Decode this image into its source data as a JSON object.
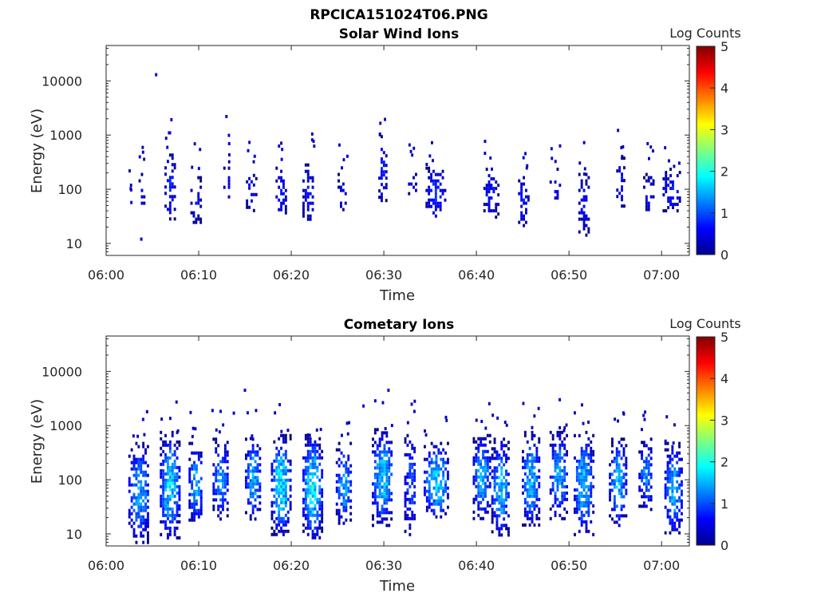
{
  "figure_title": "RPCICA151024T06.PNG",
  "colorbar": {
    "label": "Log Counts",
    "ticks": [
      0,
      1,
      2,
      3,
      4,
      5
    ],
    "range": [
      0,
      5
    ],
    "colormap": "jet"
  },
  "chart_data": [
    {
      "type": "heatmap",
      "title": "Solar Wind Ions",
      "xlabel": "Time",
      "ylabel": "Energy (eV)",
      "x_ticks": [
        "06:00",
        "06:10",
        "06:20",
        "06:30",
        "06:40",
        "06:50",
        "07:00"
      ],
      "x_range_minutes": [
        0,
        63
      ],
      "y_scale": "log",
      "y_ticks": [
        10,
        100,
        1000,
        10000
      ],
      "ylim": [
        6,
        45000
      ],
      "grid": false,
      "bursts": [
        {
          "t": 2.5,
          "w": 0.3,
          "e_lo": 50,
          "e_hi": 80,
          "density": 0.5,
          "max_level": 0.6
        },
        {
          "t": 3.8,
          "w": 0.6,
          "e_lo": 40,
          "e_hi": 200,
          "density": 0.45,
          "max_level": 0.7
        },
        {
          "t": 6.8,
          "w": 1.0,
          "e_lo": 25,
          "e_hi": 600,
          "density": 0.55,
          "max_level": 0.9
        },
        {
          "t": 9.6,
          "w": 1.0,
          "e_lo": 25,
          "e_hi": 200,
          "density": 0.5,
          "max_level": 0.8
        },
        {
          "t": 13.0,
          "w": 0.7,
          "e_lo": 50,
          "e_hi": 300,
          "density": 0.4,
          "max_level": 0.7
        },
        {
          "t": 15.6,
          "w": 1.0,
          "e_lo": 40,
          "e_hi": 220,
          "density": 0.5,
          "max_level": 0.8
        },
        {
          "t": 18.8,
          "w": 1.0,
          "e_lo": 30,
          "e_hi": 300,
          "density": 0.55,
          "max_level": 0.8
        },
        {
          "t": 21.8,
          "w": 1.2,
          "e_lo": 25,
          "e_hi": 300,
          "density": 0.5,
          "max_level": 0.8
        },
        {
          "t": 25.5,
          "w": 1.0,
          "e_lo": 40,
          "e_hi": 200,
          "density": 0.4,
          "max_level": 0.6
        },
        {
          "t": 29.8,
          "w": 0.8,
          "e_lo": 50,
          "e_hi": 1000,
          "density": 0.55,
          "max_level": 0.9
        },
        {
          "t": 33.0,
          "w": 0.8,
          "e_lo": 80,
          "e_hi": 200,
          "density": 0.35,
          "max_level": 0.6
        },
        {
          "t": 35.5,
          "w": 2.0,
          "e_lo": 30,
          "e_hi": 300,
          "density": 0.55,
          "max_level": 0.9
        },
        {
          "t": 41.5,
          "w": 1.5,
          "e_lo": 30,
          "e_hi": 250,
          "density": 0.5,
          "max_level": 0.8
        },
        {
          "t": 45.0,
          "w": 1.0,
          "e_lo": 20,
          "e_hi": 200,
          "density": 0.45,
          "max_level": 0.8
        },
        {
          "t": 48.5,
          "w": 1.2,
          "e_lo": 60,
          "e_hi": 250,
          "density": 0.4,
          "max_level": 0.7
        },
        {
          "t": 51.5,
          "w": 1.0,
          "e_lo": 15,
          "e_hi": 200,
          "density": 0.45,
          "max_level": 0.7
        },
        {
          "t": 55.5,
          "w": 0.8,
          "e_lo": 40,
          "e_hi": 400,
          "density": 0.5,
          "max_level": 0.8
        },
        {
          "t": 58.5,
          "w": 1.0,
          "e_lo": 40,
          "e_hi": 200,
          "density": 0.45,
          "max_level": 0.7
        },
        {
          "t": 61.0,
          "w": 1.8,
          "e_lo": 40,
          "e_hi": 250,
          "density": 0.5,
          "max_level": 0.8
        }
      ],
      "points": [
        {
          "t": 5.4,
          "e": 13000,
          "level": 0.5
        },
        {
          "t": 13.0,
          "e": 2200,
          "level": 0.5
        },
        {
          "t": 6.8,
          "e": 1100,
          "level": 0.5
        },
        {
          "t": 3.8,
          "e": 12,
          "level": 0.5
        }
      ]
    },
    {
      "type": "heatmap",
      "title": "Cometary Ions",
      "xlabel": "Time",
      "ylabel": "Energy (eV)",
      "x_ticks": [
        "06:00",
        "06:10",
        "06:20",
        "06:30",
        "06:40",
        "06:50",
        "07:00"
      ],
      "x_range_minutes": [
        0,
        63
      ],
      "y_scale": "log",
      "y_ticks": [
        10,
        100,
        1000,
        10000
      ],
      "ylim": [
        6,
        45000
      ],
      "grid": false,
      "bursts": [
        {
          "t": 3.5,
          "w": 2.2,
          "e_lo": 7,
          "e_hi": 500,
          "density": 0.75,
          "max_level": 1.6
        },
        {
          "t": 6.8,
          "w": 2.0,
          "e_lo": 8,
          "e_hi": 800,
          "density": 0.8,
          "max_level": 2.0
        },
        {
          "t": 9.6,
          "w": 1.4,
          "e_lo": 15,
          "e_hi": 500,
          "density": 0.7,
          "max_level": 1.7
        },
        {
          "t": 12.3,
          "w": 1.6,
          "e_lo": 20,
          "e_hi": 600,
          "density": 0.7,
          "max_level": 1.6
        },
        {
          "t": 15.8,
          "w": 1.6,
          "e_lo": 20,
          "e_hi": 600,
          "density": 0.75,
          "max_level": 1.8
        },
        {
          "t": 18.8,
          "w": 2.0,
          "e_lo": 10,
          "e_hi": 700,
          "density": 0.8,
          "max_level": 2.1
        },
        {
          "t": 22.2,
          "w": 2.0,
          "e_lo": 8,
          "e_hi": 700,
          "density": 0.8,
          "max_level": 2.2
        },
        {
          "t": 25.6,
          "w": 1.6,
          "e_lo": 15,
          "e_hi": 500,
          "density": 0.7,
          "max_level": 1.7
        },
        {
          "t": 29.8,
          "w": 2.2,
          "e_lo": 15,
          "e_hi": 900,
          "density": 0.75,
          "max_level": 1.9
        },
        {
          "t": 32.8,
          "w": 1.2,
          "e_lo": 10,
          "e_hi": 800,
          "density": 0.6,
          "max_level": 1.2
        },
        {
          "t": 35.6,
          "w": 2.6,
          "e_lo": 20,
          "e_hi": 500,
          "density": 0.8,
          "max_level": 2.0
        },
        {
          "t": 40.5,
          "w": 1.8,
          "e_lo": 20,
          "e_hi": 700,
          "density": 0.75,
          "max_level": 1.7
        },
        {
          "t": 42.5,
          "w": 1.8,
          "e_lo": 10,
          "e_hi": 600,
          "density": 0.75,
          "max_level": 1.9
        },
        {
          "t": 45.8,
          "w": 1.8,
          "e_lo": 15,
          "e_hi": 800,
          "density": 0.75,
          "max_level": 1.8
        },
        {
          "t": 48.8,
          "w": 1.8,
          "e_lo": 20,
          "e_hi": 800,
          "density": 0.75,
          "max_level": 1.7
        },
        {
          "t": 51.5,
          "w": 2.0,
          "e_lo": 10,
          "e_hi": 800,
          "density": 0.75,
          "max_level": 1.8
        },
        {
          "t": 55.2,
          "w": 1.8,
          "e_lo": 15,
          "e_hi": 600,
          "density": 0.75,
          "max_level": 1.8
        },
        {
          "t": 58.2,
          "w": 1.4,
          "e_lo": 30,
          "e_hi": 600,
          "density": 0.65,
          "max_level": 1.5
        },
        {
          "t": 61.2,
          "w": 1.8,
          "e_lo": 10,
          "e_hi": 500,
          "density": 0.75,
          "max_level": 1.8
        }
      ],
      "points": [
        {
          "t": 15.0,
          "e": 4500,
          "level": 0.5
        },
        {
          "t": 30.5,
          "e": 4500,
          "level": 0.5
        },
        {
          "t": 49.0,
          "e": 3000,
          "level": 0.5
        },
        {
          "t": 27.8,
          "e": 2300,
          "level": 0.5
        },
        {
          "t": 4.0,
          "e": 1300,
          "level": 0.5
        },
        {
          "t": 11.5,
          "e": 1900,
          "level": 0.5
        },
        {
          "t": 13.8,
          "e": 1700,
          "level": 0.5
        }
      ]
    }
  ]
}
